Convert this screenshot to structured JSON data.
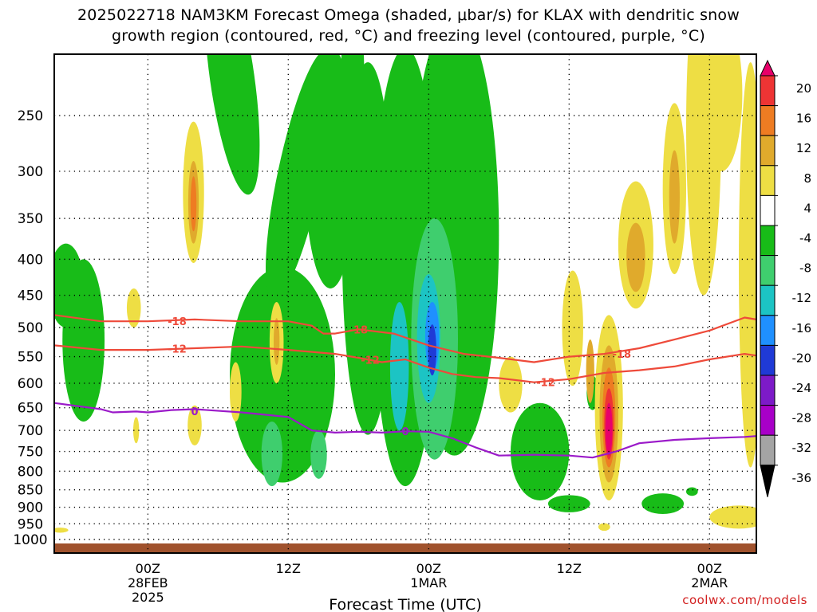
{
  "title_line1": "2025022718 NAM3KM Forecast Omega (shaded, μbar/s) for KLAX with dendritic snow",
  "title_line2": "growth region (contoured, red, °C) and freezing level (contoured, purple, °C)",
  "credit": "coolwx.com/models",
  "chart_data": {
    "type": "heatmap",
    "xlabel": "Forecast Time (UTC)",
    "ylabel": "",
    "x_range_hours": [
      -8,
      52
    ],
    "x_ticks": [
      {
        "hour": 0,
        "label": "00Z",
        "sub1": "28FEB",
        "sub2": "2025"
      },
      {
        "hour": 12,
        "label": "12Z",
        "sub1": "",
        "sub2": ""
      },
      {
        "hour": 24,
        "label": "00Z",
        "sub1": "1MAR",
        "sub2": ""
      },
      {
        "hour": 36,
        "label": "12Z",
        "sub1": "",
        "sub2": ""
      },
      {
        "hour": 48,
        "label": "00Z",
        "sub1": "2MAR",
        "sub2": ""
      }
    ],
    "y_scale": "pressure (hPa), decreasing upward",
    "y_ticks": [
      1000,
      950,
      900,
      850,
      800,
      750,
      700,
      650,
      600,
      550,
      500,
      450,
      400,
      350,
      300,
      250
    ],
    "y_range": [
      1015,
      200
    ],
    "grid": true,
    "colorbar": {
      "labels": [
        "20",
        "16",
        "12",
        "8",
        "4",
        "-4",
        "-8",
        "-12",
        "-16",
        "-20",
        "-24",
        "-28",
        "-32",
        "-36"
      ],
      "colors": [
        "#e8006a",
        "#ee3434",
        "#ee7c22",
        "#e0aa2c",
        "#eede44",
        "#ffffff",
        "#18bc18",
        "#3fce6e",
        "#1cc4c4",
        "#1f90ff",
        "#1f3ad6",
        "#7d1ac8",
        "#a800c8",
        "#a4a4a4",
        "#000000"
      ]
    },
    "contours": [
      {
        "label": "-18",
        "color": "#ee4a3a",
        "x": [
          -8,
          -4,
          0,
          4,
          8,
          12,
          14,
          15,
          16,
          18,
          21,
          24,
          27,
          30,
          33,
          36,
          39,
          42,
          45,
          48,
          51,
          52
        ],
        "y": [
          480,
          490,
          490,
          487,
          490,
          490,
          497,
          510,
          510,
          503,
          510,
          530,
          545,
          552,
          560,
          550,
          545,
          535,
          520,
          505,
          484,
          487
        ],
        "label_at": [
          {
            "x": 2.5,
            "y": 490
          },
          {
            "x": 18,
            "y": 503
          },
          {
            "x": 40.5,
            "y": 545
          }
        ]
      },
      {
        "label": "-12",
        "color": "#ee4a3a",
        "x": [
          -8,
          -4,
          0,
          4,
          8,
          12,
          16,
          18,
          20,
          22,
          24,
          26,
          28,
          30,
          33,
          36,
          39,
          42,
          45,
          48,
          51,
          52
        ],
        "y": [
          530,
          538,
          538,
          535,
          532,
          538,
          545,
          552,
          560,
          555,
          570,
          582,
          588,
          590,
          598,
          592,
          580,
          575,
          568,
          555,
          545,
          548
        ],
        "label_at": [
          {
            "x": 2.5,
            "y": 536
          },
          {
            "x": 19,
            "y": 556
          },
          {
            "x": 34,
            "y": 598
          }
        ]
      },
      {
        "label": "0",
        "color": "#9b1ac9",
        "x": [
          -8,
          -4,
          -3,
          -1,
          0,
          2,
          4,
          8,
          10,
          12,
          14,
          16,
          18,
          20,
          22,
          24,
          26,
          28,
          30,
          33,
          36,
          38,
          40,
          42,
          45,
          48,
          51,
          52
        ],
        "y": [
          640,
          653,
          660,
          658,
          660,
          655,
          653,
          660,
          665,
          670,
          700,
          705,
          703,
          705,
          702,
          703,
          718,
          740,
          760,
          758,
          760,
          765,
          750,
          730,
          722,
          718,
          715,
          713
        ],
        "label_at": [
          {
            "x": 4,
            "y": 657
          },
          {
            "x": 22,
            "y": 702
          }
        ]
      }
    ],
    "omega_cells": [
      {
        "level": "-8",
        "x": 7.2,
        "y": 230,
        "rx": 1.9,
        "ry": 95,
        "rot": -8
      },
      {
        "level": "-8",
        "x": 11.5,
        "y": 620,
        "rx": 4.5,
        "ry": 210,
        "rot": 0
      },
      {
        "level": "-8",
        "x": 13.0,
        "y": 330,
        "rx": 1.9,
        "ry": 130,
        "rot": 12
      },
      {
        "level": "-8",
        "x": 15.6,
        "y": 320,
        "rx": 2.2,
        "ry": 120,
        "rot": 0
      },
      {
        "level": "-8",
        "x": 17.5,
        "y": 250,
        "rx": 1.0,
        "ry": 110,
        "rot": 0
      },
      {
        "level": "-8",
        "x": 18.8,
        "y": 460,
        "rx": 2.2,
        "ry": 250,
        "rot": 0
      },
      {
        "level": "-8",
        "x": 22.0,
        "y": 520,
        "rx": 2.8,
        "ry": 320,
        "rot": 0
      },
      {
        "level": "-8",
        "x": 26.2,
        "y": 470,
        "rx": 3.8,
        "ry": 290,
        "rot": 0
      },
      {
        "level": "-8",
        "x": -5.5,
        "y": 540,
        "rx": 1.8,
        "ry": 140,
        "rot": 0
      },
      {
        "level": "-8",
        "x": -7.0,
        "y": 440,
        "rx": 1.5,
        "ry": 60,
        "rot": 0
      },
      {
        "level": "-8",
        "x": 33.5,
        "y": 760,
        "rx": 2.5,
        "ry": 120,
        "rot": 0
      },
      {
        "level": "-8",
        "x": 36.0,
        "y": 890,
        "rx": 1.8,
        "ry": 25,
        "rot": 0
      },
      {
        "level": "-8",
        "x": 44.0,
        "y": 890,
        "rx": 1.8,
        "ry": 30,
        "rot": 0
      },
      {
        "level": "-8",
        "x": 46.5,
        "y": 855,
        "rx": 0.5,
        "ry": 12,
        "rot": 0
      },
      {
        "level": "-8",
        "x": 38.0,
        "y": 620,
        "rx": 0.5,
        "ry": 35,
        "rot": 0
      },
      {
        "level": "-12",
        "x": 24.5,
        "y": 560,
        "rx": 2.0,
        "ry": 210,
        "rot": 0
      },
      {
        "level": "-12",
        "x": 10.6,
        "y": 760,
        "rx": 0.9,
        "ry": 80,
        "rot": 0
      },
      {
        "level": "-12",
        "x": 14.6,
        "y": 760,
        "rx": 0.7,
        "ry": 60,
        "rot": 0
      },
      {
        "level": "-16",
        "x": 24.0,
        "y": 530,
        "rx": 1.0,
        "ry": 110,
        "rot": 0
      },
      {
        "level": "-16",
        "x": 21.5,
        "y": 580,
        "rx": 0.8,
        "ry": 120,
        "rot": 0
      },
      {
        "level": "-20",
        "x": 24.3,
        "y": 520,
        "rx": 0.6,
        "ry": 60,
        "rot": 0
      },
      {
        "level": "-24",
        "x": 24.3,
        "y": 540,
        "rx": 0.35,
        "ry": 45,
        "rot": 0
      },
      {
        "level": "4",
        "x": 3.9,
        "y": 330,
        "rx": 0.9,
        "ry": 75,
        "rot": 0
      },
      {
        "level": "4",
        "x": -1.2,
        "y": 470,
        "rx": 0.6,
        "ry": 30,
        "rot": 0
      },
      {
        "level": "4",
        "x": 4.0,
        "y": 690,
        "rx": 0.6,
        "ry": 45,
        "rot": 0
      },
      {
        "level": "4",
        "x": -1.0,
        "y": 700,
        "rx": 0.25,
        "ry": 30,
        "rot": 0
      },
      {
        "level": "4",
        "x": 11.0,
        "y": 530,
        "rx": 0.6,
        "ry": 70,
        "rot": 0
      },
      {
        "level": "4",
        "x": 7.5,
        "y": 620,
        "rx": 0.5,
        "ry": 60,
        "rot": 0
      },
      {
        "level": "4",
        "x": 31.0,
        "y": 605,
        "rx": 1.0,
        "ry": 55,
        "rot": 0
      },
      {
        "level": "4",
        "x": 36.3,
        "y": 510,
        "rx": 0.9,
        "ry": 95,
        "rot": 0
      },
      {
        "level": "4",
        "x": 39.4,
        "y": 680,
        "rx": 1.2,
        "ry": 200,
        "rot": 0
      },
      {
        "level": "4",
        "x": 41.7,
        "y": 390,
        "rx": 1.5,
        "ry": 80,
        "rot": 0
      },
      {
        "level": "4",
        "x": 45.0,
        "y": 330,
        "rx": 1.0,
        "ry": 90,
        "rot": 0
      },
      {
        "level": "4",
        "x": 47.5,
        "y": 300,
        "rx": 1.5,
        "ry": 150,
        "rot": 0
      },
      {
        "level": "4",
        "x": 49.0,
        "y": 240,
        "rx": 1.8,
        "ry": 60,
        "rot": 0
      },
      {
        "level": "4",
        "x": 51.5,
        "y": 500,
        "rx": 1.0,
        "ry": 290,
        "rot": 0
      },
      {
        "level": "4",
        "x": 51.8,
        "y": 330,
        "rx": 0.6,
        "ry": 60,
        "rot": 0
      },
      {
        "level": "4",
        "x": 50.5,
        "y": 930,
        "rx": 2.5,
        "ry": 35,
        "rot": 0
      },
      {
        "level": "4",
        "x": 39.0,
        "y": 960,
        "rx": 0.5,
        "ry": 12,
        "rot": 0
      },
      {
        "level": "4",
        "x": -7.5,
        "y": 970,
        "rx": 0.7,
        "ry": 8,
        "rot": 0
      },
      {
        "level": "8",
        "x": 3.9,
        "y": 335,
        "rx": 0.45,
        "ry": 45,
        "rot": 0
      },
      {
        "level": "8",
        "x": 11.0,
        "y": 525,
        "rx": 0.25,
        "ry": 40,
        "rot": 0
      },
      {
        "level": "8",
        "x": 41.7,
        "y": 400,
        "rx": 0.8,
        "ry": 45,
        "rot": 0
      },
      {
        "level": "8",
        "x": 45.0,
        "y": 330,
        "rx": 0.45,
        "ry": 50,
        "rot": 0
      },
      {
        "level": "8",
        "x": 39.4,
        "y": 680,
        "rx": 0.8,
        "ry": 150,
        "rot": 0
      },
      {
        "level": "8",
        "x": 37.8,
        "y": 580,
        "rx": 0.35,
        "ry": 60,
        "rot": 0
      },
      {
        "level": "12",
        "x": 3.9,
        "y": 335,
        "rx": 0.25,
        "ry": 30,
        "rot": 0
      },
      {
        "level": "12",
        "x": 39.4,
        "y": 680,
        "rx": 0.55,
        "ry": 110,
        "rot": 0
      },
      {
        "level": "16",
        "x": 39.4,
        "y": 690,
        "rx": 0.4,
        "ry": 80,
        "rot": 0
      },
      {
        "level": "20",
        "x": 39.4,
        "y": 700,
        "rx": 0.3,
        "ry": 60,
        "rot": 0
      }
    ]
  }
}
